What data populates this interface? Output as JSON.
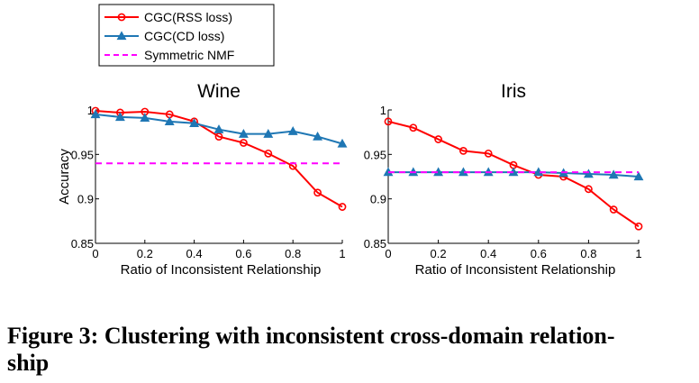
{
  "legend": [
    {
      "label": "CGC(RSS loss)",
      "color": "#ff0000",
      "marker": "circle",
      "dash": false
    },
    {
      "label": "CGC(CD loss)",
      "color": "#1f77b4",
      "marker": "triangle",
      "dash": false
    },
    {
      "label": "Symmetric NMF",
      "color": "#ff00ff",
      "marker": "none",
      "dash": true
    }
  ],
  "caption": {
    "line1": "Figure 3:  Clustering with inconsistent cross-domain relation-",
    "line2": "ship"
  },
  "chart_data": [
    {
      "type": "line",
      "title": "Wine",
      "xlabel": "Ratio of Inconsistent Relationship",
      "ylabel": "Accuracy",
      "xlim": [
        0,
        1
      ],
      "ylim": [
        0.85,
        1
      ],
      "xticks": [
        0,
        0.2,
        0.4,
        0.6,
        0.8,
        1
      ],
      "xtick_labels": [
        "0",
        "0.2",
        "0.4",
        "0.6",
        "0.8",
        "1"
      ],
      "yticks": [
        0.85,
        0.9,
        0.95,
        1
      ],
      "ytick_labels": [
        "0.85",
        "0.9",
        "0.95",
        "1"
      ],
      "x": [
        0,
        0.1,
        0.2,
        0.3,
        0.4,
        0.5,
        0.6,
        0.7,
        0.8,
        0.9,
        1.0
      ],
      "series": [
        {
          "name": "CGC(RSS loss)",
          "color": "#ff0000",
          "marker": "circle",
          "values": [
            0.999,
            0.997,
            0.998,
            0.995,
            0.987,
            0.97,
            0.963,
            0.951,
            0.937,
            0.907,
            0.891
          ]
        },
        {
          "name": "CGC(CD loss)",
          "color": "#1f77b4",
          "marker": "triangle",
          "values": [
            0.995,
            0.992,
            0.991,
            0.987,
            0.985,
            0.978,
            0.973,
            0.973,
            0.976,
            0.97,
            0.962
          ]
        },
        {
          "name": "Symmetric NMF",
          "color": "#ff00ff",
          "marker": "none",
          "dash": true,
          "values": [
            0.94,
            0.94,
            0.94,
            0.94,
            0.94,
            0.94,
            0.94,
            0.94,
            0.94,
            0.94,
            0.94
          ]
        }
      ]
    },
    {
      "type": "line",
      "title": "Iris",
      "xlabel": "Ratio of Inconsistent Relationship",
      "ylabel": "",
      "xlim": [
        0,
        1
      ],
      "ylim": [
        0.85,
        1
      ],
      "xticks": [
        0,
        0.2,
        0.4,
        0.6,
        0.8,
        1
      ],
      "xtick_labels": [
        "0",
        "0.2",
        "0.4",
        "0.6",
        "0.8",
        "1"
      ],
      "yticks": [
        0.85,
        0.9,
        0.95,
        1
      ],
      "ytick_labels": [
        "0.85",
        "0.9",
        "0.95",
        "1"
      ],
      "x": [
        0,
        0.1,
        0.2,
        0.3,
        0.4,
        0.5,
        0.6,
        0.7,
        0.8,
        0.9,
        1.0
      ],
      "series": [
        {
          "name": "CGC(RSS loss)",
          "color": "#ff0000",
          "marker": "circle",
          "values": [
            0.987,
            0.98,
            0.967,
            0.954,
            0.951,
            0.938,
            0.927,
            0.925,
            0.911,
            0.888,
            0.869
          ]
        },
        {
          "name": "CGC(CD loss)",
          "color": "#1f77b4",
          "marker": "triangle",
          "values": [
            0.93,
            0.93,
            0.93,
            0.93,
            0.93,
            0.93,
            0.93,
            0.929,
            0.928,
            0.927,
            0.925
          ]
        },
        {
          "name": "Symmetric NMF",
          "color": "#ff00ff",
          "marker": "none",
          "dash": true,
          "values": [
            0.93,
            0.93,
            0.93,
            0.93,
            0.93,
            0.93,
            0.93,
            0.93,
            0.93,
            0.93,
            0.93
          ]
        }
      ]
    }
  ]
}
